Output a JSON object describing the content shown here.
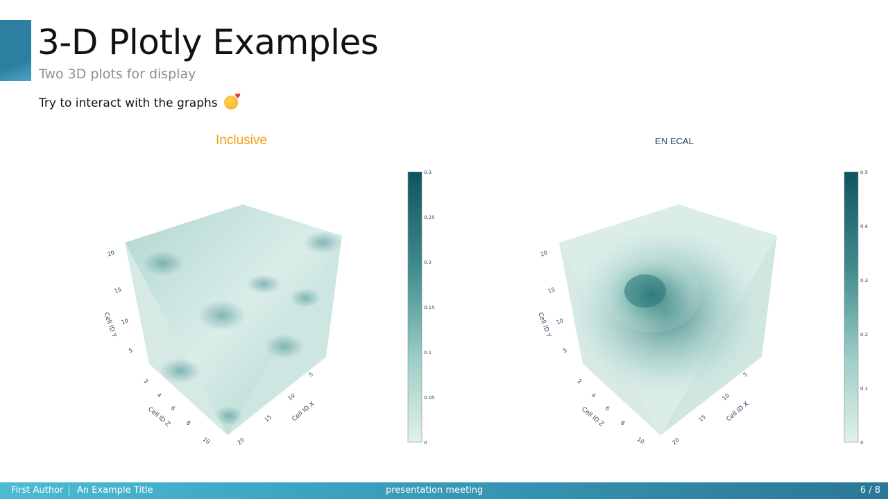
{
  "slide": {
    "title": "3-D Plotly Examples",
    "subtitle": "Two 3D plots for display",
    "intro": "Try to interact with the graphs",
    "emoji_icon": "smiling-face-with-hearts-icon"
  },
  "plots": {
    "left": {
      "title": "Inclusive",
      "title_color": "#f39c12",
      "colorbar_ticks": [
        "0",
        "0.05",
        "0.1",
        "0.15",
        "0.2",
        "0.25",
        "0.3"
      ],
      "axis_titles": {
        "x": "Cell ID X",
        "y": "Cell ID Y",
        "z": "Cell ID Z"
      },
      "ticks": {
        "y": [
          "5",
          "10",
          "15",
          "20"
        ],
        "z": [
          "2",
          "4",
          "6",
          "8",
          "10"
        ],
        "x": [
          "5",
          "10",
          "15",
          "20"
        ]
      }
    },
    "right": {
      "title": "EN ECAL",
      "title_color": "#2a3f5f",
      "colorbar_ticks": [
        "0",
        "0.1",
        "0.2",
        "0.3",
        "0.4",
        "0.5"
      ],
      "axis_titles": {
        "x": "Cell ID X",
        "y": "Cell ID Y",
        "z": "Cell ID Z"
      },
      "ticks": {
        "y": [
          "5",
          "10",
          "15",
          "20"
        ],
        "z": [
          "2",
          "4",
          "6",
          "8",
          "10"
        ],
        "x": [
          "5",
          "10",
          "15",
          "20"
        ]
      }
    }
  },
  "colorscale": [
    "#e2f1e6",
    "#9fcfc8",
    "#5aa3a0",
    "#2c7a7e",
    "#0d5560"
  ],
  "footer": {
    "author": "First Author",
    "presentation_title": "An Example Title",
    "event": "presentation meeting",
    "page": "6 / 8"
  }
}
